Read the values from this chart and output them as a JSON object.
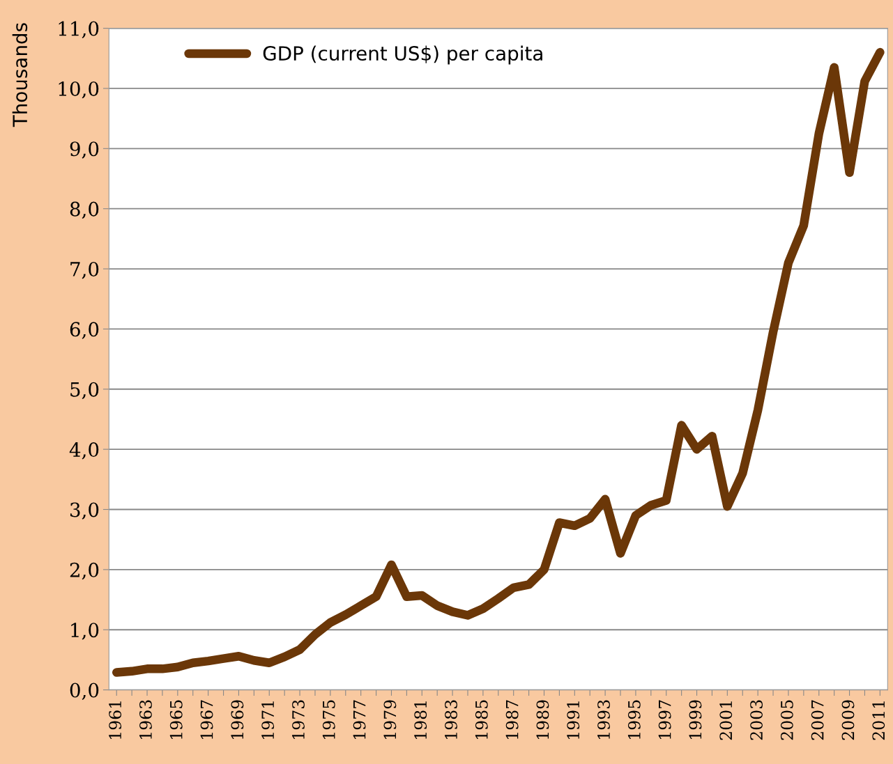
{
  "chart_data": {
    "type": "line",
    "ylabel": "Thousands",
    "categories": [
      "1961",
      null,
      "1963",
      null,
      "1965",
      null,
      "1967",
      null,
      "1969",
      null,
      "1971",
      null,
      "1973",
      null,
      "1975",
      null,
      "1977",
      null,
      "1979",
      null,
      "1981",
      null,
      "1983",
      null,
      "1985",
      null,
      "1987",
      null,
      "1989",
      null,
      "1991",
      null,
      "1993",
      null,
      "1995",
      null,
      "1997",
      null,
      "1999",
      null,
      "2001",
      null,
      "2003",
      null,
      "2005",
      null,
      "2007",
      null,
      "2009",
      null,
      "2011"
    ],
    "series": [
      {
        "name": "GDP (current US$) per capita",
        "color": "#6b3708",
        "values": [
          0.29,
          0.31,
          0.35,
          0.35,
          0.38,
          0.45,
          0.48,
          0.52,
          0.56,
          0.49,
          0.45,
          0.55,
          0.67,
          0.92,
          1.12,
          1.25,
          1.4,
          1.55,
          2.08,
          1.55,
          1.57,
          1.4,
          1.3,
          1.24,
          1.35,
          1.52,
          1.7,
          1.75,
          2.0,
          2.78,
          2.73,
          2.85,
          3.17,
          2.27,
          2.9,
          3.07,
          3.15,
          4.4,
          4.0,
          4.22,
          3.05,
          3.6,
          4.65,
          5.95,
          7.1,
          7.72,
          9.25,
          10.35,
          8.6,
          10.12,
          10.6
        ]
      }
    ],
    "ylim": [
      0,
      11
    ],
    "yticks": [
      {
        "value": 0,
        "label": "0,0"
      },
      {
        "value": 1,
        "label": "1,0"
      },
      {
        "value": 2,
        "label": "2,0"
      },
      {
        "value": 3,
        "label": "3,0"
      },
      {
        "value": 4,
        "label": "4,0"
      },
      {
        "value": 5,
        "label": "5,0"
      },
      {
        "value": 6,
        "label": "6,0"
      },
      {
        "value": 7,
        "label": "7,0"
      },
      {
        "value": 8,
        "label": "8,0"
      },
      {
        "value": 9,
        "label": "9,0"
      },
      {
        "value": 10,
        "label": "10,0"
      },
      {
        "value": 11,
        "label": "11,0"
      }
    ],
    "grid": "y",
    "legend": "top left",
    "line_style": "solid"
  }
}
